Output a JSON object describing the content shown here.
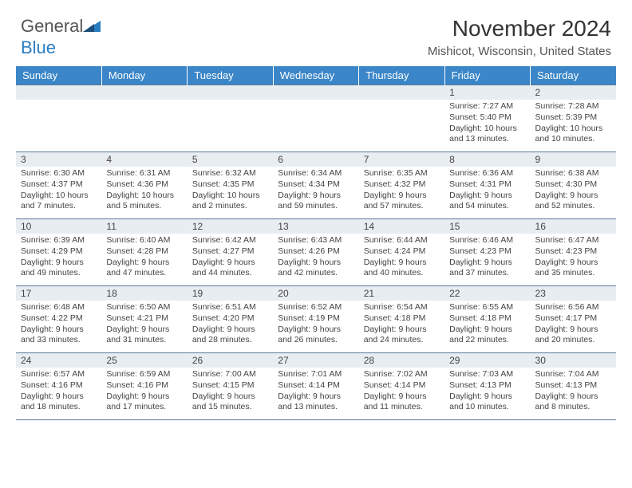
{
  "logo": {
    "word1": "General",
    "word2": "Blue"
  },
  "title": "November 2024",
  "subtitle": "Mishicot, Wisconsin, United States",
  "colors": {
    "header_bg": "#3a86c8",
    "header_fg": "#ffffff",
    "daynum_bg": "#e8edf2",
    "border": "#5a7a99",
    "text": "#444444",
    "logo_gray": "#555555",
    "logo_blue": "#2a7dc1"
  },
  "typography": {
    "title_size": 28,
    "subtitle_size": 15,
    "weekday_size": 13,
    "daynum_size": 12,
    "body_size": 10.5
  },
  "weekdays": [
    "Sunday",
    "Monday",
    "Tuesday",
    "Wednesday",
    "Thursday",
    "Friday",
    "Saturday"
  ],
  "weeks": [
    [
      null,
      null,
      null,
      null,
      null,
      {
        "n": "1",
        "sr": "Sunrise: 7:27 AM",
        "ss": "Sunset: 5:40 PM",
        "d1": "Daylight: 10 hours",
        "d2": "and 13 minutes."
      },
      {
        "n": "2",
        "sr": "Sunrise: 7:28 AM",
        "ss": "Sunset: 5:39 PM",
        "d1": "Daylight: 10 hours",
        "d2": "and 10 minutes."
      }
    ],
    [
      {
        "n": "3",
        "sr": "Sunrise: 6:30 AM",
        "ss": "Sunset: 4:37 PM",
        "d1": "Daylight: 10 hours",
        "d2": "and 7 minutes."
      },
      {
        "n": "4",
        "sr": "Sunrise: 6:31 AM",
        "ss": "Sunset: 4:36 PM",
        "d1": "Daylight: 10 hours",
        "d2": "and 5 minutes."
      },
      {
        "n": "5",
        "sr": "Sunrise: 6:32 AM",
        "ss": "Sunset: 4:35 PM",
        "d1": "Daylight: 10 hours",
        "d2": "and 2 minutes."
      },
      {
        "n": "6",
        "sr": "Sunrise: 6:34 AM",
        "ss": "Sunset: 4:34 PM",
        "d1": "Daylight: 9 hours",
        "d2": "and 59 minutes."
      },
      {
        "n": "7",
        "sr": "Sunrise: 6:35 AM",
        "ss": "Sunset: 4:32 PM",
        "d1": "Daylight: 9 hours",
        "d2": "and 57 minutes."
      },
      {
        "n": "8",
        "sr": "Sunrise: 6:36 AM",
        "ss": "Sunset: 4:31 PM",
        "d1": "Daylight: 9 hours",
        "d2": "and 54 minutes."
      },
      {
        "n": "9",
        "sr": "Sunrise: 6:38 AM",
        "ss": "Sunset: 4:30 PM",
        "d1": "Daylight: 9 hours",
        "d2": "and 52 minutes."
      }
    ],
    [
      {
        "n": "10",
        "sr": "Sunrise: 6:39 AM",
        "ss": "Sunset: 4:29 PM",
        "d1": "Daylight: 9 hours",
        "d2": "and 49 minutes."
      },
      {
        "n": "11",
        "sr": "Sunrise: 6:40 AM",
        "ss": "Sunset: 4:28 PM",
        "d1": "Daylight: 9 hours",
        "d2": "and 47 minutes."
      },
      {
        "n": "12",
        "sr": "Sunrise: 6:42 AM",
        "ss": "Sunset: 4:27 PM",
        "d1": "Daylight: 9 hours",
        "d2": "and 44 minutes."
      },
      {
        "n": "13",
        "sr": "Sunrise: 6:43 AM",
        "ss": "Sunset: 4:26 PM",
        "d1": "Daylight: 9 hours",
        "d2": "and 42 minutes."
      },
      {
        "n": "14",
        "sr": "Sunrise: 6:44 AM",
        "ss": "Sunset: 4:24 PM",
        "d1": "Daylight: 9 hours",
        "d2": "and 40 minutes."
      },
      {
        "n": "15",
        "sr": "Sunrise: 6:46 AM",
        "ss": "Sunset: 4:23 PM",
        "d1": "Daylight: 9 hours",
        "d2": "and 37 minutes."
      },
      {
        "n": "16",
        "sr": "Sunrise: 6:47 AM",
        "ss": "Sunset: 4:23 PM",
        "d1": "Daylight: 9 hours",
        "d2": "and 35 minutes."
      }
    ],
    [
      {
        "n": "17",
        "sr": "Sunrise: 6:48 AM",
        "ss": "Sunset: 4:22 PM",
        "d1": "Daylight: 9 hours",
        "d2": "and 33 minutes."
      },
      {
        "n": "18",
        "sr": "Sunrise: 6:50 AM",
        "ss": "Sunset: 4:21 PM",
        "d1": "Daylight: 9 hours",
        "d2": "and 31 minutes."
      },
      {
        "n": "19",
        "sr": "Sunrise: 6:51 AM",
        "ss": "Sunset: 4:20 PM",
        "d1": "Daylight: 9 hours",
        "d2": "and 28 minutes."
      },
      {
        "n": "20",
        "sr": "Sunrise: 6:52 AM",
        "ss": "Sunset: 4:19 PM",
        "d1": "Daylight: 9 hours",
        "d2": "and 26 minutes."
      },
      {
        "n": "21",
        "sr": "Sunrise: 6:54 AM",
        "ss": "Sunset: 4:18 PM",
        "d1": "Daylight: 9 hours",
        "d2": "and 24 minutes."
      },
      {
        "n": "22",
        "sr": "Sunrise: 6:55 AM",
        "ss": "Sunset: 4:18 PM",
        "d1": "Daylight: 9 hours",
        "d2": "and 22 minutes."
      },
      {
        "n": "23",
        "sr": "Sunrise: 6:56 AM",
        "ss": "Sunset: 4:17 PM",
        "d1": "Daylight: 9 hours",
        "d2": "and 20 minutes."
      }
    ],
    [
      {
        "n": "24",
        "sr": "Sunrise: 6:57 AM",
        "ss": "Sunset: 4:16 PM",
        "d1": "Daylight: 9 hours",
        "d2": "and 18 minutes."
      },
      {
        "n": "25",
        "sr": "Sunrise: 6:59 AM",
        "ss": "Sunset: 4:16 PM",
        "d1": "Daylight: 9 hours",
        "d2": "and 17 minutes."
      },
      {
        "n": "26",
        "sr": "Sunrise: 7:00 AM",
        "ss": "Sunset: 4:15 PM",
        "d1": "Daylight: 9 hours",
        "d2": "and 15 minutes."
      },
      {
        "n": "27",
        "sr": "Sunrise: 7:01 AM",
        "ss": "Sunset: 4:14 PM",
        "d1": "Daylight: 9 hours",
        "d2": "and 13 minutes."
      },
      {
        "n": "28",
        "sr": "Sunrise: 7:02 AM",
        "ss": "Sunset: 4:14 PM",
        "d1": "Daylight: 9 hours",
        "d2": "and 11 minutes."
      },
      {
        "n": "29",
        "sr": "Sunrise: 7:03 AM",
        "ss": "Sunset: 4:13 PM",
        "d1": "Daylight: 9 hours",
        "d2": "and 10 minutes."
      },
      {
        "n": "30",
        "sr": "Sunrise: 7:04 AM",
        "ss": "Sunset: 4:13 PM",
        "d1": "Daylight: 9 hours",
        "d2": "and 8 minutes."
      }
    ]
  ]
}
